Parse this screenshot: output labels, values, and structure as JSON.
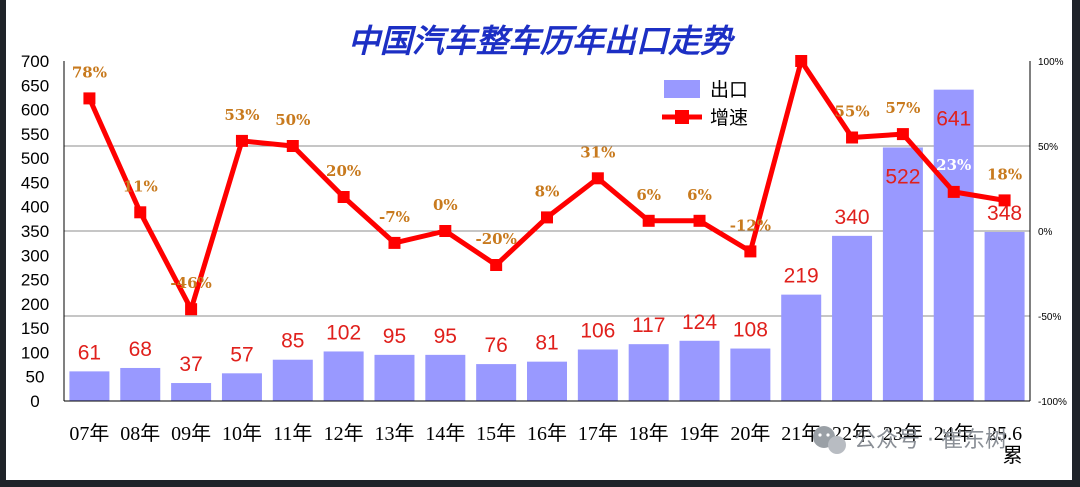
{
  "chart_data": {
    "type": "bar",
    "title": "中国汽车整车历年出口走势",
    "categories": [
      "07年",
      "08年",
      "09年",
      "10年",
      "11年",
      "12年",
      "13年",
      "14年",
      "15年",
      "16年",
      "17年",
      "18年",
      "19年",
      "20年",
      "21年",
      "22年",
      "23年",
      "24年",
      "25.6累"
    ],
    "series": [
      {
        "name": "出口",
        "type": "bar",
        "axis": "left",
        "values": [
          61,
          68,
          37,
          57,
          85,
          102,
          95,
          95,
          76,
          81,
          106,
          117,
          124,
          108,
          219,
          340,
          522,
          641,
          348
        ],
        "labels": [
          "61",
          "68",
          "37",
          "57",
          "85",
          "102",
          "95",
          "95",
          "76",
          "81",
          "106",
          "117",
          "124",
          "108",
          "219",
          "340",
          "522",
          "641",
          "348"
        ],
        "color": "#9999ff",
        "label_color": "#e0201c"
      },
      {
        "name": "增速",
        "type": "line",
        "axis": "right",
        "values": [
          78,
          11,
          -46,
          53,
          50,
          20,
          -7,
          0,
          -20,
          8,
          31,
          6,
          6,
          -12,
          100,
          55,
          57,
          23,
          18
        ],
        "labels": [
          "78%",
          "11%",
          "-46%",
          "53%",
          "50%",
          "20%",
          "-7%",
          "0%",
          "-20%",
          "8%",
          "31%",
          "6%",
          "6%",
          "-12%",
          "",
          "55%",
          "57%",
          "23%",
          "18%"
        ],
        "color": "#ff0000",
        "label_color": "#c87a1e"
      }
    ],
    "y_left": {
      "min": 0,
      "max": 700,
      "step": 50,
      "ticks": [
        "0",
        "50",
        "100",
        "150",
        "200",
        "250",
        "300",
        "350",
        "400",
        "450",
        "500",
        "550",
        "600",
        "650",
        "700"
      ]
    },
    "y_right": {
      "min": -100,
      "max": 100,
      "ticks": [
        "-100%",
        "-50%",
        "0%",
        "50%",
        "100%"
      ]
    },
    "legend": {
      "position": "top-right",
      "items": [
        "出口",
        "增速"
      ]
    }
  },
  "watermark": {
    "text": "公众号 · 崔东树",
    "icon": "wechat-icon"
  },
  "colors": {
    "bar": "#9999ff",
    "line": "#ff0000",
    "title": "#1c2fc4",
    "bar_label": "#e0201c",
    "pct_label": "#c87a1e"
  }
}
